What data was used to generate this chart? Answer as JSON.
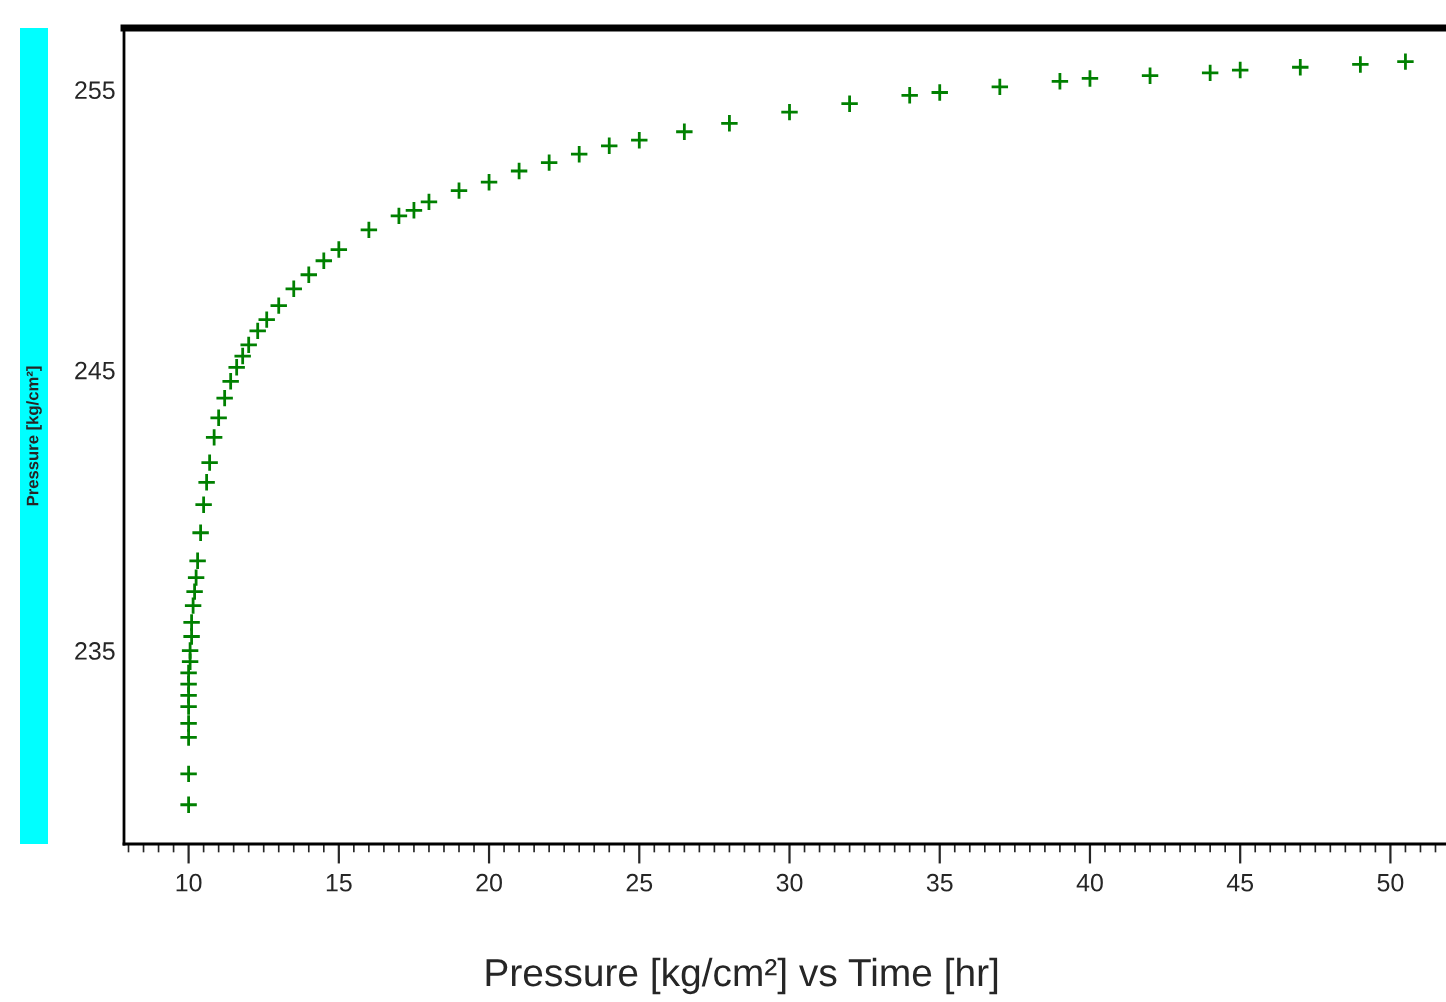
{
  "chart_data": {
    "type": "scatter",
    "title": "Pressure [kg/cm²] vs Time [hr]",
    "ylabel": "Pressure [kg/cm²]",
    "marker": "cross",
    "grid": false,
    "xlim": [
      7.85,
      51.85
    ],
    "ylim": [
      228.1,
      257.2
    ],
    "xticks": [
      10,
      15,
      20,
      25,
      30,
      35,
      40,
      45,
      50
    ],
    "yticks": [
      235,
      245,
      255
    ],
    "series": [
      {
        "color": "#008000",
        "x": [
          10.0,
          10.0,
          10.0,
          10.0,
          10.0,
          10.0,
          10.0,
          10.0,
          10.05,
          10.05,
          10.1,
          10.1,
          10.15,
          10.2,
          10.25,
          10.3,
          10.4,
          10.5,
          10.6,
          10.7,
          10.85,
          11.0,
          11.2,
          11.4,
          11.6,
          11.8,
          12.0,
          12.3,
          12.6,
          13.0,
          13.5,
          14.0,
          14.5,
          15.0,
          16.0,
          17.0,
          17.5,
          18.0,
          19.0,
          20.0,
          21.0,
          22.0,
          23.0,
          24.0,
          25.0,
          26.5,
          28.0,
          30.0,
          32.0,
          34.0,
          35.0,
          37.0,
          39.0,
          40.0,
          42.0,
          44.0,
          45.0,
          47.0,
          49.0,
          50.5
        ],
        "values": [
          229.5,
          230.6,
          231.9,
          232.4,
          233.0,
          233.4,
          233.8,
          234.2,
          234.6,
          235.0,
          235.5,
          236.0,
          236.6,
          237.1,
          237.6,
          238.2,
          239.2,
          240.2,
          241.0,
          241.7,
          242.6,
          243.3,
          244.0,
          244.6,
          245.1,
          245.5,
          245.9,
          246.4,
          246.8,
          247.3,
          247.9,
          248.4,
          248.9,
          249.3,
          250.0,
          250.5,
          250.7,
          251.0,
          251.4,
          251.7,
          252.1,
          252.4,
          252.7,
          253.0,
          253.2,
          253.5,
          253.8,
          254.2,
          254.5,
          254.8,
          254.9,
          255.1,
          255.3,
          255.4,
          255.5,
          255.6,
          255.7,
          255.8,
          255.9,
          256.0
        ]
      }
    ]
  }
}
